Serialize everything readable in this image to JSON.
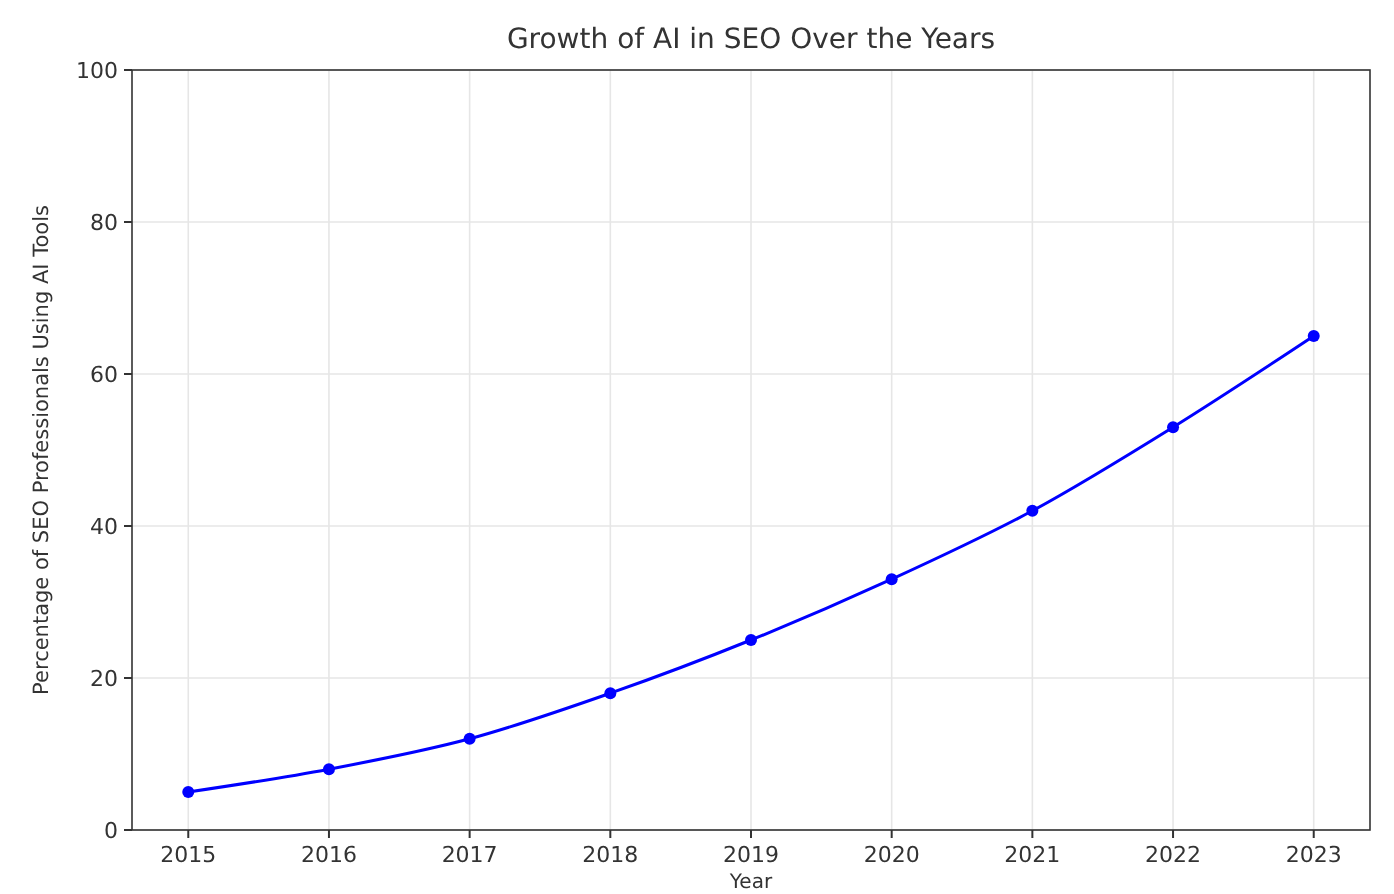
{
  "chart_data": {
    "type": "line",
    "title": "Growth of AI in SEO Over the Years",
    "xlabel": "Year",
    "ylabel": "Percentage of SEO Professionals Using AI Tools",
    "x": [
      2015,
      2016,
      2017,
      2018,
      2019,
      2020,
      2021,
      2022,
      2023
    ],
    "series": [
      {
        "color": "#0000ff",
        "values": [
          5,
          8,
          12,
          18,
          25,
          33,
          42,
          53,
          65
        ]
      }
    ],
    "xlim": [
      2014.6,
      2023.4
    ],
    "xticks": [
      2015,
      2016,
      2017,
      2018,
      2019,
      2020,
      2021,
      2022,
      2023
    ],
    "ylim": [
      0,
      100
    ],
    "yticks": [
      0,
      20,
      40,
      60,
      80,
      100
    ],
    "grid": true,
    "marker": "circle",
    "line_style": "solid"
  }
}
